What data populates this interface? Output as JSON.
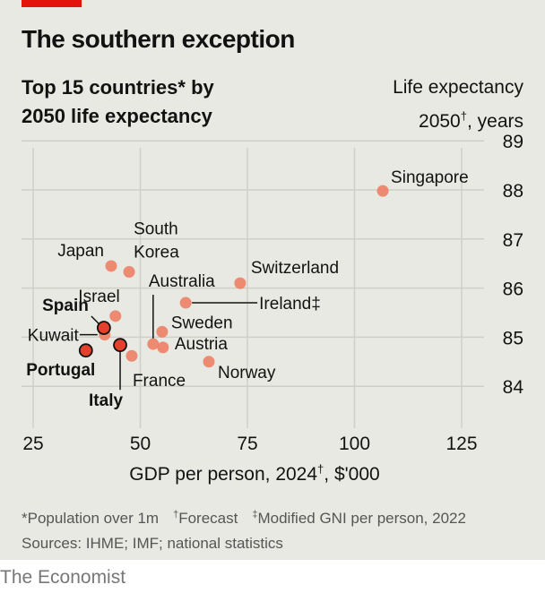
{
  "title": "The southern exception",
  "subtitle": "Top 15 countries* by 2050 life expectancy",
  "brand": "The Economist",
  "notes": {
    "population": "*Population over 1m",
    "forecast_mark": "†",
    "forecast": "Forecast",
    "gni_mark": "‡",
    "gni": "Modified GNI per person, 2022",
    "sources": "Sources: IHME; IMF; national statistics"
  },
  "colors": {
    "brand_red": "#e3120b",
    "point": "#ec8065",
    "highlight": "#e3412b",
    "background": "#e9e9e3"
  },
  "chart_data": {
    "type": "scatter",
    "title": "The southern exception",
    "xlabel": "GDP per person, 2024†, $'000",
    "xlabel_main": "GDP per person, 2024",
    "xlabel_mark": "†",
    "xlabel_tail": ", $'000",
    "ylabel_line1": "Life expectancy",
    "ylabel_year": "2050",
    "ylabel_mark": "†",
    "ylabel_tail": ", years",
    "xlim": [
      25,
      135
    ],
    "ylim": [
      84,
      89
    ],
    "xticks": [
      "25",
      "50",
      "75",
      "100",
      "125"
    ],
    "yticks": [
      "84",
      "85",
      "86",
      "87",
      "88",
      "89"
    ],
    "grid": true,
    "points": [
      {
        "name": "Singapore",
        "x": 106.6,
        "y": 87.98,
        "highlight": false
      },
      {
        "name": "Japan",
        "x": 43.2,
        "y": 86.45,
        "highlight": false
      },
      {
        "name": "South Korea",
        "x": 47.4,
        "y": 86.33,
        "highlight": false
      },
      {
        "name": "Switzerland",
        "x": 73.3,
        "y": 86.1,
        "highlight": false
      },
      {
        "name": "Ireland‡",
        "x": 60.6,
        "y": 85.7,
        "highlight": false
      },
      {
        "name": "Israel",
        "x": 44.2,
        "y": 85.43,
        "highlight": false
      },
      {
        "name": "Kuwait",
        "x": 41.7,
        "y": 85.05,
        "highlight": false
      },
      {
        "name": "Spain",
        "x": 41.5,
        "y": 85.19,
        "highlight": true
      },
      {
        "name": "Sweden",
        "x": 55.1,
        "y": 85.11,
        "highlight": false
      },
      {
        "name": "Australia",
        "x": 53.0,
        "y": 84.86,
        "highlight": false
      },
      {
        "name": "Austria",
        "x": 55.3,
        "y": 84.79,
        "highlight": false
      },
      {
        "name": "France",
        "x": 48.0,
        "y": 84.62,
        "highlight": false
      },
      {
        "name": "Norway",
        "x": 66.0,
        "y": 84.5,
        "highlight": false
      },
      {
        "name": "Portugal",
        "x": 37.3,
        "y": 84.73,
        "highlight": true
      },
      {
        "name": "Italy",
        "x": 45.3,
        "y": 84.84,
        "highlight": true
      }
    ]
  }
}
